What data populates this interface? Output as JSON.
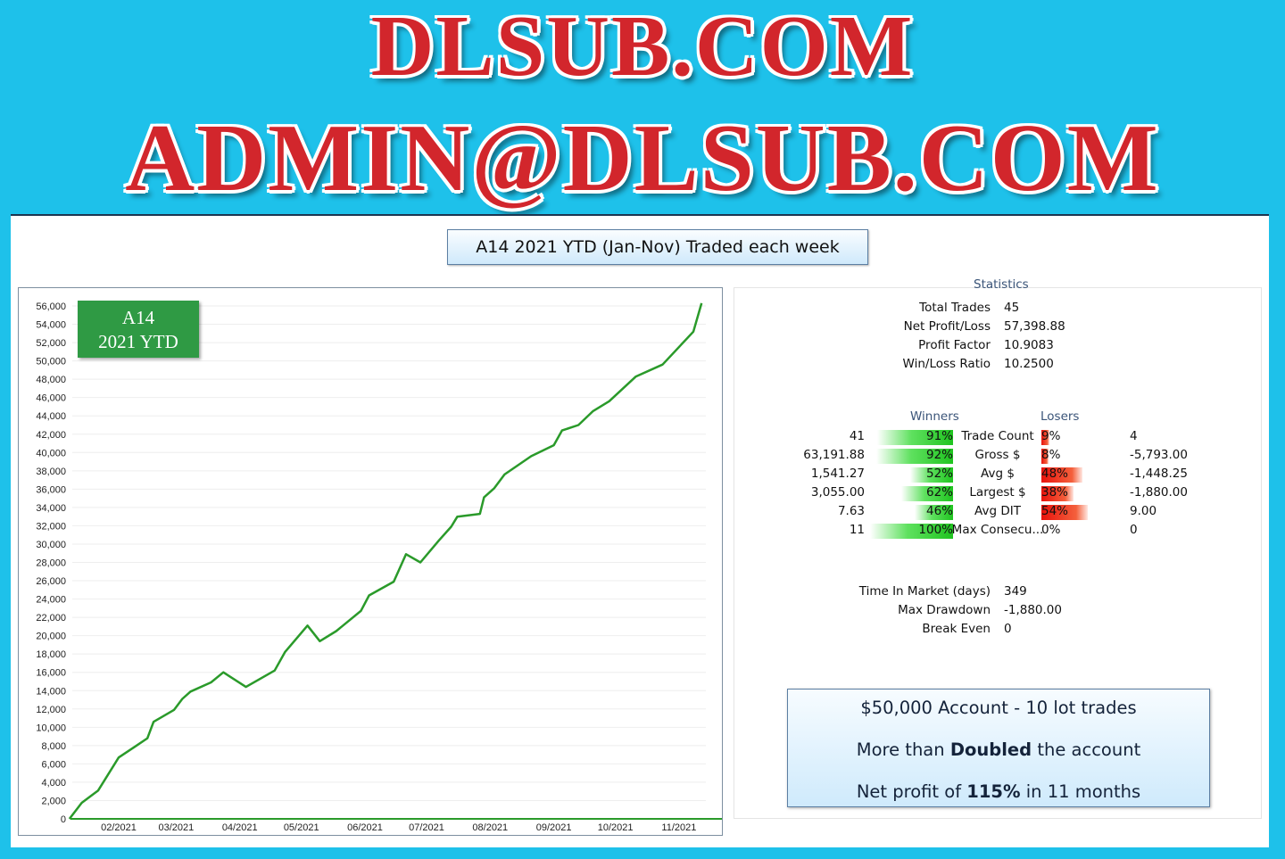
{
  "logo": {
    "line1": "DLSUB.COM",
    "line2": "ADMIN@DLSUB.COM"
  },
  "title": "A14 2021 YTD (Jan-Nov) Traded each week",
  "badge": {
    "line1": "A14",
    "line2": "2021 YTD"
  },
  "colors": {
    "background": "#1ec1ea",
    "line": "#2a9a2a",
    "badge": "#2f9a44",
    "logo_red": "#d2262c",
    "winner_bar": "#1fc41f",
    "loser_bar": "#e8120c"
  },
  "chart_data": {
    "type": "line",
    "title": "",
    "xlabel": "",
    "ylabel": "",
    "ylim": [
      0,
      56000
    ],
    "yticks": [
      0,
      2000,
      4000,
      6000,
      8000,
      10000,
      12000,
      14000,
      16000,
      18000,
      20000,
      22000,
      24000,
      26000,
      28000,
      30000,
      32000,
      34000,
      36000,
      38000,
      40000,
      42000,
      44000,
      46000,
      48000,
      50000,
      52000,
      54000,
      56000
    ],
    "ytick_labels": [
      "0",
      "2,000",
      "4,000",
      "6,000",
      "8,000",
      "10,000",
      "12,000",
      "14,000",
      "16,000",
      "18,000",
      "20,000",
      "22,000",
      "24,000",
      "26,000",
      "28,000",
      "30,000",
      "32,000",
      "34,000",
      "36,000",
      "38,000",
      "40,000",
      "42,000",
      "44,000",
      "46,000",
      "48,000",
      "50,000",
      "52,000",
      "54,000",
      "56,000"
    ],
    "xtick_labels": [
      "02/2021",
      "03/2021",
      "04/2021",
      "05/2021",
      "06/2021",
      "07/2021",
      "08/2021",
      "09/2021",
      "10/2021",
      "11/2021"
    ],
    "grid": true,
    "series": [
      {
        "points": [
          [
            "2021-01-08",
            0
          ],
          [
            "2021-01-14",
            1750
          ],
          [
            "2021-01-22",
            3100
          ],
          [
            "2021-02-01",
            6700
          ],
          [
            "2021-02-09",
            7900
          ],
          [
            "2021-02-15",
            8800
          ],
          [
            "2021-02-18",
            10600
          ],
          [
            "2021-02-28",
            11900
          ],
          [
            "2021-03-04",
            13100
          ],
          [
            "2021-03-08",
            13900
          ],
          [
            "2021-03-18",
            14900
          ],
          [
            "2021-03-24",
            16000
          ],
          [
            "2021-04-04",
            14400
          ],
          [
            "2021-04-18",
            16200
          ],
          [
            "2021-04-23",
            18200
          ],
          [
            "2021-05-04",
            21100
          ],
          [
            "2021-05-10",
            19400
          ],
          [
            "2021-05-18",
            20500
          ],
          [
            "2021-05-30",
            22700
          ],
          [
            "2021-06-03",
            24400
          ],
          [
            "2021-06-15",
            25900
          ],
          [
            "2021-06-21",
            28900
          ],
          [
            "2021-06-28",
            28000
          ],
          [
            "2021-07-07",
            30400
          ],
          [
            "2021-07-13",
            31900
          ],
          [
            "2021-07-16",
            33000
          ],
          [
            "2021-07-27",
            33300
          ],
          [
            "2021-07-29",
            35100
          ],
          [
            "2021-08-03",
            36100
          ],
          [
            "2021-08-08",
            37600
          ],
          [
            "2021-08-21",
            39600
          ],
          [
            "2021-09-01",
            40800
          ],
          [
            "2021-09-05",
            42400
          ],
          [
            "2021-09-13",
            43000
          ],
          [
            "2021-09-20",
            44500
          ],
          [
            "2021-09-28",
            45600
          ],
          [
            "2021-10-11",
            48300
          ],
          [
            "2021-10-24",
            49600
          ],
          [
            "2021-11-08",
            53200
          ],
          [
            "2021-11-12",
            56300
          ]
        ]
      }
    ]
  },
  "statistics": {
    "heading": "Statistics",
    "summary": [
      {
        "label": "Total Trades",
        "value": "45"
      },
      {
        "label": "Net Profit/Loss",
        "value": "57,398.88"
      },
      {
        "label": "Profit Factor",
        "value": "10.9083"
      },
      {
        "label": "Win/Loss Ratio",
        "value": "10.2500"
      }
    ],
    "winners_label": "Winners",
    "losers_label": "Losers",
    "rows": [
      {
        "label": "Trade Count",
        "win": "41",
        "win_pct": "91%",
        "win_frac": 0.91,
        "lose_pct": "9%",
        "lose_frac": 0.09,
        "lose": "4"
      },
      {
        "label": "Gross $",
        "win": "63,191.88",
        "win_pct": "92%",
        "win_frac": 0.92,
        "lose_pct": "8%",
        "lose_frac": 0.08,
        "lose": "-5,793.00"
      },
      {
        "label": "Avg $",
        "win": "1,541.27",
        "win_pct": "52%",
        "win_frac": 0.52,
        "lose_pct": "48%",
        "lose_frac": 0.48,
        "lose": "-1,448.25"
      },
      {
        "label": "Largest $",
        "win": "3,055.00",
        "win_pct": "62%",
        "win_frac": 0.62,
        "lose_pct": "38%",
        "lose_frac": 0.38,
        "lose": "-1,880.00"
      },
      {
        "label": "Avg DIT",
        "win": "7.63",
        "win_pct": "46%",
        "win_frac": 0.46,
        "lose_pct": "54%",
        "lose_frac": 0.54,
        "lose": "9.00"
      },
      {
        "label": "Max Consecu...",
        "win": "11",
        "win_pct": "100%",
        "win_frac": 1.0,
        "lose_pct": "0%",
        "lose_frac": 0,
        "lose": "0"
      }
    ],
    "extra": [
      {
        "label": "Time In Market (days)",
        "value": "349"
      },
      {
        "label": "Max Drawdown",
        "value": "-1,880.00"
      },
      {
        "label": "Break Even",
        "value": "0"
      }
    ]
  },
  "info": {
    "line1": "$50,000 Account - 10 lot trades",
    "line2_pre": "More than ",
    "line2_bold": "Doubled",
    "line2_post": " the account",
    "line3_pre": "Net profit of ",
    "line3_bold": "115%",
    "line3_post": " in 11 months"
  }
}
